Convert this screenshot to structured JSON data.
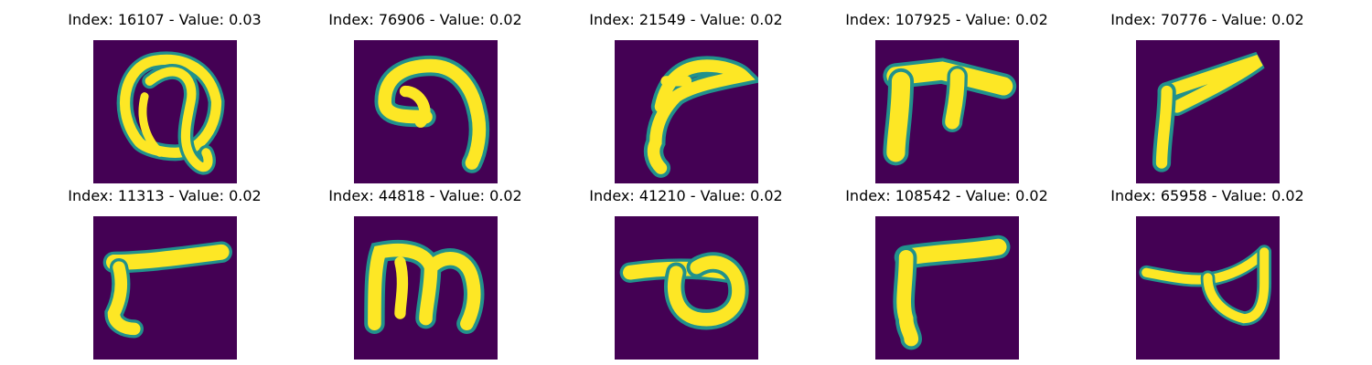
{
  "grid": {
    "rows": 2,
    "cols": 5,
    "colors": {
      "background": "#440154",
      "stroke": "#fde725",
      "edge": "#21918c"
    }
  },
  "panels": [
    {
      "title": "Index: 16107 - Value: 0.03",
      "glyph": "loop-q"
    },
    {
      "title": "Index: 76906 - Value: 0.02",
      "glyph": "hook-arch"
    },
    {
      "title": "Index: 21549 - Value: 0.02",
      "glyph": "bird-curve"
    },
    {
      "title": "Index: 107925 - Value: 0.02",
      "glyph": "tee-bar"
    },
    {
      "title": "Index: 70776 - Value: 0.02",
      "glyph": "corner-f"
    },
    {
      "title": "Index: 11313 - Value: 0.02",
      "glyph": "sweep-r"
    },
    {
      "title": "Index: 44818 - Value: 0.02",
      "glyph": "triple-arch"
    },
    {
      "title": "Index: 41210 - Value: 0.02",
      "glyph": "bar-loop"
    },
    {
      "title": "Index: 108542 - Value: 0.02",
      "glyph": "corner-r"
    },
    {
      "title": "Index: 65958 - Value: 0.02",
      "glyph": "line-loop"
    }
  ]
}
